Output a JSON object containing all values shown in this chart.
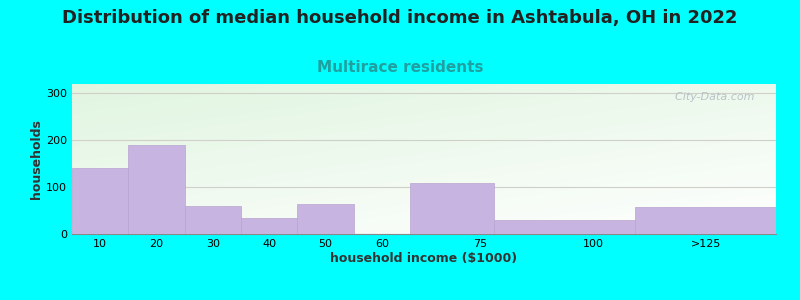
{
  "title": "Distribution of median household income in Ashtabula, OH in 2022",
  "subtitle": "Multirace residents",
  "xlabel": "household income ($1000)",
  "ylabel": "households",
  "background_color": "#00FFFF",
  "bar_color": "#c8b4e0",
  "bar_edge_color": "#b8a4d0",
  "categories": [
    "10",
    "20",
    "30",
    "40",
    "50",
    "60",
    "75",
    "100",
    ">125"
  ],
  "values": [
    140,
    190,
    60,
    35,
    63,
    0,
    108,
    30,
    58
  ],
  "ylim": [
    0,
    320
  ],
  "yticks": [
    0,
    100,
    200,
    300
  ],
  "grid_color": "#d0d0c8",
  "watermark": "  City-Data.com",
  "title_fontsize": 13,
  "subtitle_fontsize": 11,
  "subtitle_color": "#20a0a0",
  "axis_label_fontsize": 9,
  "tick_fontsize": 8,
  "title_color": "#222222"
}
